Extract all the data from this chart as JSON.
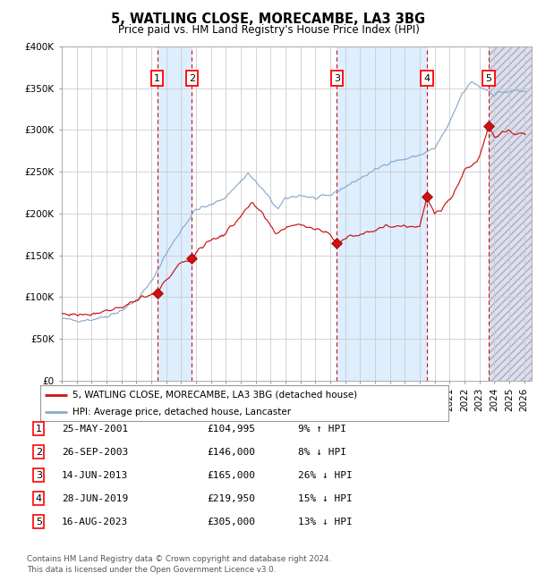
{
  "title": "5, WATLING CLOSE, MORECAMBE, LA3 3BG",
  "subtitle": "Price paid vs. HM Land Registry's House Price Index (HPI)",
  "legend_line1": "5, WATLING CLOSE, MORECAMBE, LA3 3BG (detached house)",
  "legend_line2": "HPI: Average price, detached house, Lancaster",
  "footer_line1": "Contains HM Land Registry data © Crown copyright and database right 2024.",
  "footer_line2": "This data is licensed under the Open Government Licence v3.0.",
  "hpi_color": "#88aacc",
  "price_color": "#cc1111",
  "bg_color": "#ffffff",
  "grid_color": "#cccccc",
  "band_color_blue": "#ddeeff",
  "sale_points": [
    {
      "num": 1,
      "date": "25-MAY-2001",
      "year_f": 2001.39,
      "price": 104995,
      "pct": "9% ↑ HPI"
    },
    {
      "num": 2,
      "date": "26-SEP-2003",
      "year_f": 2003.73,
      "price": 146000,
      "pct": "8% ↓ HPI"
    },
    {
      "num": 3,
      "date": "14-JUN-2013",
      "year_f": 2013.45,
      "price": 165000,
      "pct": "26% ↓ HPI"
    },
    {
      "num": 4,
      "date": "28-JUN-2019",
      "year_f": 2019.49,
      "price": 219950,
      "pct": "15% ↓ HPI"
    },
    {
      "num": 5,
      "date": "16-AUG-2023",
      "year_f": 2023.62,
      "price": 305000,
      "pct": "13% ↓ HPI"
    }
  ],
  "ylim": [
    0,
    400000
  ],
  "xlim_start": 1995.0,
  "xlim_end": 2026.5,
  "ytick_vals": [
    0,
    50000,
    100000,
    150000,
    200000,
    250000,
    300000,
    350000,
    400000
  ],
  "ytick_labels": [
    "£0",
    "£50K",
    "£100K",
    "£150K",
    "£200K",
    "£250K",
    "£300K",
    "£350K",
    "£400K"
  ],
  "xtick_start": 1995,
  "xtick_end": 2026
}
